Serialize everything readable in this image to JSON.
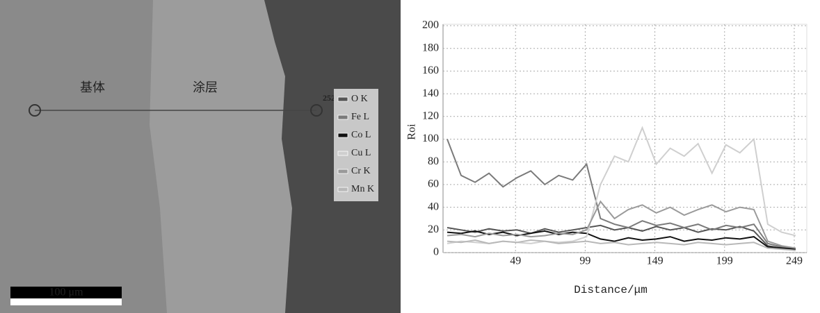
{
  "image": {
    "matrix_label": "基体",
    "coating_label": "涂层",
    "point_label": "252",
    "scale_bar": "100 μm"
  },
  "chart_data": {
    "type": "line",
    "y_label": "Roi",
    "x_label": "Distance/μm",
    "x": [
      0,
      10,
      20,
      30,
      40,
      50,
      60,
      70,
      80,
      90,
      100,
      110,
      120,
      130,
      140,
      150,
      160,
      170,
      180,
      190,
      200,
      210,
      220,
      230,
      240,
      250
    ],
    "xlim": [
      -3,
      258
    ],
    "xticks": [
      49,
      99,
      149,
      199,
      249
    ],
    "ylim": [
      0,
      200
    ],
    "yticks": [
      0,
      20,
      40,
      60,
      80,
      100,
      120,
      140,
      160,
      180,
      200
    ],
    "grid": true,
    "series": [
      {
        "name": "O K",
        "color": "#555555",
        "values": [
          22,
          20,
          18,
          21,
          19,
          20,
          17,
          21,
          18,
          20,
          22,
          24,
          20,
          22,
          19,
          23,
          20,
          22,
          18,
          21,
          20,
          23,
          19,
          6,
          4,
          3
        ]
      },
      {
        "name": "Fe L",
        "color": "#7a7a7a",
        "values": [
          100,
          68,
          62,
          70,
          58,
          66,
          72,
          60,
          68,
          64,
          78,
          30,
          25,
          22,
          28,
          24,
          26,
          22,
          25,
          20,
          24,
          22,
          25,
          8,
          5,
          3
        ]
      },
      {
        "name": "Co L",
        "color": "#111111",
        "values": [
          18,
          17,
          19,
          16,
          18,
          15,
          17,
          19,
          16,
          18,
          17,
          12,
          10,
          13,
          11,
          12,
          14,
          10,
          12,
          11,
          13,
          12,
          14,
          5,
          4,
          3
        ]
      },
      {
        "name": "Cu L",
        "color": "#cfcfcf",
        "values": [
          8,
          10,
          9,
          8,
          10,
          9,
          8,
          10,
          9,
          10,
          14,
          60,
          85,
          80,
          110,
          78,
          92,
          85,
          96,
          70,
          95,
          88,
          100,
          25,
          18,
          15
        ]
      },
      {
        "name": "Cr K",
        "color": "#9a9a9a",
        "values": [
          15,
          16,
          14,
          17,
          15,
          16,
          14,
          15,
          17,
          16,
          20,
          45,
          30,
          38,
          42,
          35,
          40,
          33,
          38,
          42,
          36,
          40,
          38,
          10,
          6,
          4
        ]
      },
      {
        "name": "Mn K",
        "color": "#b8b8b8",
        "values": [
          10,
          9,
          11,
          8,
          10,
          9,
          11,
          10,
          8,
          9,
          10,
          8,
          9,
          7,
          8,
          9,
          8,
          7,
          9,
          8,
          7,
          8,
          9,
          4,
          3,
          2
        ]
      }
    ]
  }
}
